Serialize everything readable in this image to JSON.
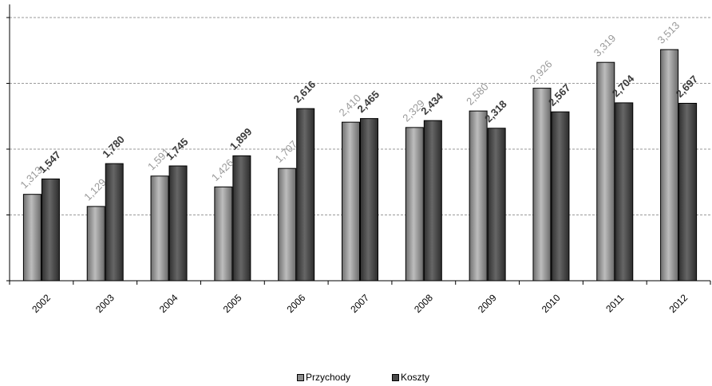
{
  "chart_data": {
    "type": "bar",
    "categories": [
      "2002",
      "2003",
      "2004",
      "2005",
      "2006",
      "2007",
      "2008",
      "2009",
      "2010",
      "2011",
      "2012"
    ],
    "series": [
      {
        "name": "Przychody",
        "values": [
          1313,
          1129,
          1591,
          1426,
          1707,
          2410,
          2329,
          2580,
          2926,
          3319,
          3513
        ],
        "labels": [
          "1,313",
          "1,129",
          "1,591",
          "1,426",
          "1,707",
          "2,410",
          "2,329",
          "2,580",
          "2,926",
          "3,319",
          "3,513"
        ],
        "color": "#8c8c8c",
        "label_color": "#9a9a9a"
      },
      {
        "name": "Koszty",
        "values": [
          1547,
          1780,
          1745,
          1899,
          2616,
          2465,
          2434,
          2318,
          2567,
          2704,
          2697
        ],
        "labels": [
          "1,547",
          "1,780",
          "1,745",
          "1,899",
          "2,616",
          "2,465",
          "2,434",
          "2,318",
          "2,567",
          "2,704",
          "2,697"
        ],
        "color": "#4a4a4a",
        "label_color": "#3a3a3a"
      }
    ],
    "ylim": [
      0,
      4200
    ],
    "y_gridlines": [
      1000,
      2000,
      3000,
      4000
    ],
    "grid": "dashed horizontal",
    "legend_position": "bottom"
  }
}
